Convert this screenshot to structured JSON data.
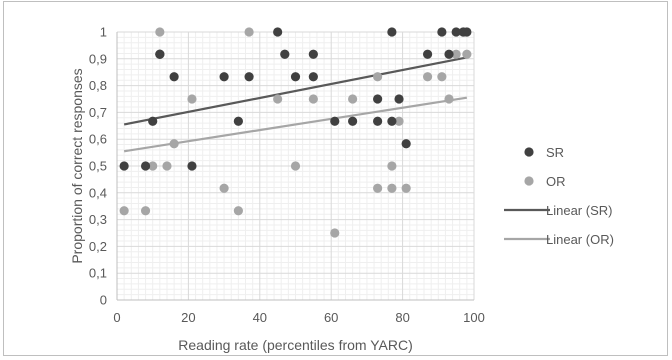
{
  "chart_data": {
    "type": "scatter",
    "title": "",
    "xlabel": "Reading rate (percentiles from YARC)",
    "ylabel": "Proportion of correct responses",
    "xlim": [
      0,
      100
    ],
    "ylim": [
      0,
      1
    ],
    "xticks": [
      0,
      20,
      40,
      60,
      80,
      100
    ],
    "yticks": [
      0,
      0.1,
      0.2,
      0.3,
      0.4,
      0.5,
      0.6,
      0.7,
      0.8,
      0.9,
      1
    ],
    "ytick_labels": [
      "0",
      "0,1",
      "0,2",
      "0,3",
      "0,4",
      "0,5",
      "0,6",
      "0,7",
      "0,8",
      "0,9",
      "1"
    ],
    "grid": true,
    "legend_position": "right",
    "series": [
      {
        "name": "SR",
        "kind": "points",
        "color": "#404040",
        "points": [
          [
            2,
            0.5
          ],
          [
            8,
            0.5
          ],
          [
            10,
            0.667
          ],
          [
            12,
            0.917
          ],
          [
            12,
            0.917
          ],
          [
            16,
            0.833
          ],
          [
            21,
            0.5
          ],
          [
            30,
            0.833
          ],
          [
            34,
            0.667
          ],
          [
            37,
            0.833
          ],
          [
            45,
            1.0
          ],
          [
            47,
            0.917
          ],
          [
            50,
            0.833
          ],
          [
            55,
            0.917
          ],
          [
            55,
            0.833
          ],
          [
            61,
            0.667
          ],
          [
            66,
            0.667
          ],
          [
            73,
            0.75
          ],
          [
            73,
            0.667
          ],
          [
            77,
            1.0
          ],
          [
            77,
            0.667
          ],
          [
            79,
            0.75
          ],
          [
            81,
            0.583
          ],
          [
            87,
            0.917
          ],
          [
            91,
            1.0
          ],
          [
            93,
            0.917
          ],
          [
            95,
            1.0
          ],
          [
            97,
            1.0
          ],
          [
            98,
            1.0
          ]
        ]
      },
      {
        "name": "OR",
        "kind": "points",
        "color": "#a6a6a6",
        "points": [
          [
            2,
            0.333
          ],
          [
            8,
            0.333
          ],
          [
            10,
            0.5
          ],
          [
            12,
            1.0
          ],
          [
            12,
            0.917
          ],
          [
            14,
            0.5
          ],
          [
            16,
            0.583
          ],
          [
            21,
            0.75
          ],
          [
            30,
            0.417
          ],
          [
            34,
            0.333
          ],
          [
            37,
            1.0
          ],
          [
            45,
            0.75
          ],
          [
            47,
            0.917
          ],
          [
            50,
            0.5
          ],
          [
            55,
            0.75
          ],
          [
            61,
            0.25
          ],
          [
            66,
            0.75
          ],
          [
            73,
            0.833
          ],
          [
            73,
            0.417
          ],
          [
            77,
            0.5
          ],
          [
            77,
            0.417
          ],
          [
            79,
            0.667
          ],
          [
            81,
            0.417
          ],
          [
            87,
            0.833
          ],
          [
            91,
            0.833
          ],
          [
            93,
            0.75
          ],
          [
            95,
            0.917
          ],
          [
            97,
            1.0
          ],
          [
            98,
            0.917
          ]
        ]
      },
      {
        "name": "Linear (SR)",
        "kind": "trendline",
        "color": "#595959",
        "x": [
          2,
          98
        ],
        "values": [
          0.655,
          0.905
        ]
      },
      {
        "name": "Linear (OR)",
        "kind": "trendline",
        "color": "#a6a6a6",
        "x": [
          2,
          98
        ],
        "values": [
          0.555,
          0.755
        ]
      }
    ]
  }
}
